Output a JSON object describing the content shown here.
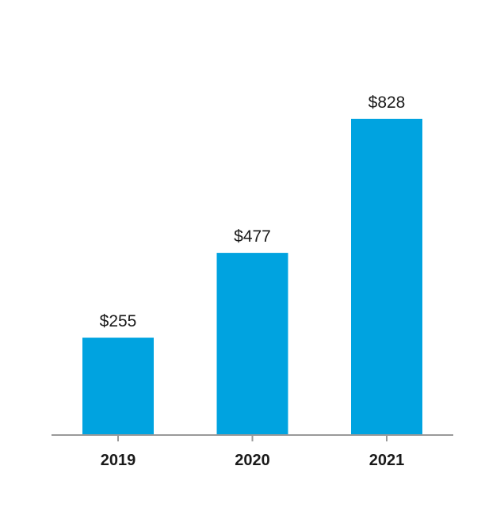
{
  "chart_data": {
    "type": "bar",
    "categories": [
      "2019",
      "2020",
      "2021"
    ],
    "values": [
      255,
      477,
      828
    ],
    "value_labels": [
      "$255",
      "$477",
      "$828"
    ],
    "title": "",
    "xlabel": "",
    "ylabel": "",
    "ylim": [
      0,
      900
    ],
    "grid": false,
    "legend": "none",
    "bar_color": "#00a3e0",
    "axis_color": "#999999"
  }
}
